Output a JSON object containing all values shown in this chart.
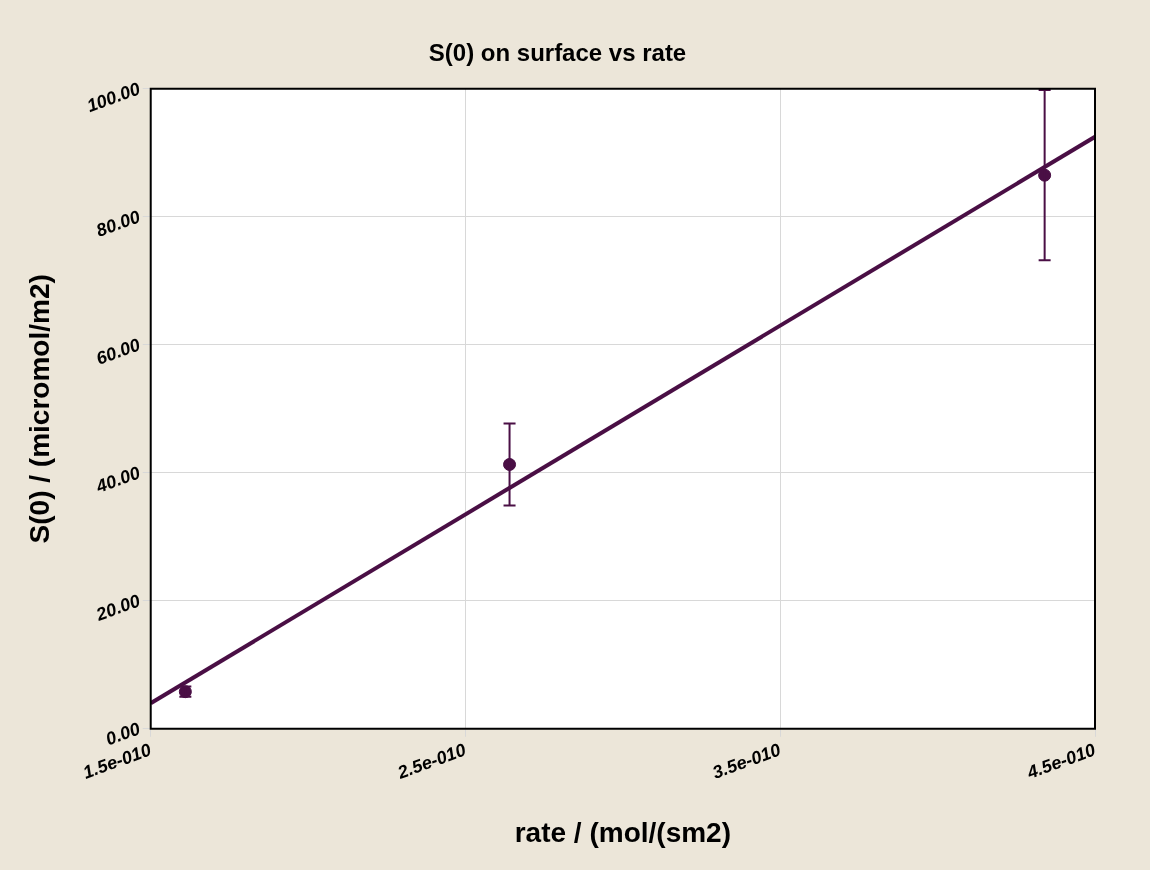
{
  "chart_data": {
    "type": "scatter",
    "title": "S(0) on surface vs rate",
    "xlabel": "rate / (mol/(sm2)",
    "ylabel": "S(0) / (micromol/m2)",
    "series": [
      {
        "marker": "circle",
        "color": "#4a0f45",
        "x": [
          1.61e-10,
          2.64e-10,
          4.34e-10
        ],
        "values": [
          5.8,
          41.3,
          86.5
        ],
        "errors": [
          0.8,
          6.4,
          13.3
        ]
      },
      {
        "type": "line",
        "marker": "none",
        "color": "#4a0f45",
        "x": [
          1.5e-10,
          4.5e-10
        ],
        "values": [
          4.0,
          92.5
        ]
      }
    ],
    "xlim": [
      1.5e-10,
      4.5e-10
    ],
    "xticks": [
      {
        "value": 1.5e-10,
        "label": "1.5e-010"
      },
      {
        "value": 2.5e-10,
        "label": "2.5e-010"
      },
      {
        "value": 3.5e-10,
        "label": "3.5e-010"
      },
      {
        "value": 4.5e-10,
        "label": "4.5e-010"
      }
    ],
    "ylim": [
      0,
      100
    ],
    "yticks": [
      {
        "value": 0,
        "label": "0.00"
      },
      {
        "value": 20,
        "label": "20.00"
      },
      {
        "value": 40,
        "label": "40.00"
      },
      {
        "value": 60,
        "label": "60.00"
      },
      {
        "value": 80,
        "label": "80.00"
      },
      {
        "value": 100,
        "label": "100.00"
      }
    ],
    "grid": true,
    "legend": false,
    "line_style": "solid"
  }
}
